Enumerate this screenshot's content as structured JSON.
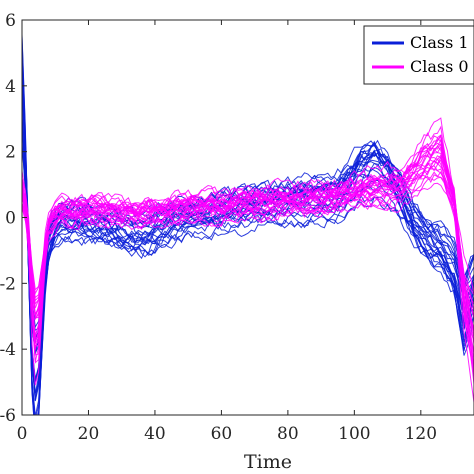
{
  "chart_data": {
    "type": "line",
    "title": "",
    "xlabel": "Time",
    "ylabel": "",
    "xlim": [
      0,
      136
    ],
    "ylim": [
      -6,
      6
    ],
    "x_ticks": [
      0,
      20,
      40,
      60,
      80,
      100,
      120
    ],
    "x_tick_labels": [
      "0",
      "20",
      "40",
      "60",
      "80",
      "100",
      "120"
    ],
    "y_ticks": [
      -6,
      -4,
      -2,
      0,
      2,
      4,
      6
    ],
    "y_tick_labels": [
      "-6",
      "-4",
      "-2",
      "0",
      "2",
      "4",
      "6"
    ],
    "grid": false,
    "legend_position": "top-right",
    "series": [
      {
        "name": "Class 1",
        "color": "#0a1fd8",
        "traces_drawn": 24,
        "spread": 0.55,
        "x": [
          0,
          1,
          2,
          3,
          4,
          5,
          6,
          7,
          8,
          10,
          12,
          15,
          20,
          25,
          30,
          35,
          38,
          42,
          50,
          60,
          70,
          80,
          88,
          94,
          98,
          102,
          106,
          110,
          114,
          118,
          122,
          126,
          130,
          133,
          136
        ],
        "mean": [
          4.0,
          1.8,
          -1.2,
          -4.0,
          -5.0,
          -4.6,
          -3.0,
          -1.5,
          -0.8,
          -0.3,
          -0.1,
          -0.1,
          -0.2,
          -0.3,
          -0.4,
          -0.55,
          -0.5,
          -0.3,
          0.0,
          0.2,
          0.35,
          0.45,
          0.55,
          0.6,
          0.9,
          1.4,
          1.6,
          1.3,
          0.6,
          -0.2,
          -0.7,
          -1.0,
          -1.6,
          -3.0,
          -2.0
        ]
      },
      {
        "name": "Class 0",
        "color": "#ff00ff",
        "traces_drawn": 24,
        "spread": 0.4,
        "x": [
          0,
          1,
          2,
          3,
          4,
          5,
          6,
          7,
          8,
          10,
          12,
          15,
          20,
          25,
          30,
          35,
          38,
          42,
          50,
          60,
          70,
          80,
          88,
          94,
          98,
          102,
          106,
          110,
          114,
          118,
          122,
          126,
          130,
          133,
          136
        ],
        "mean": [
          0.8,
          0.3,
          -0.6,
          -2.5,
          -3.6,
          -3.4,
          -2.2,
          -1.0,
          -0.3,
          0.0,
          0.1,
          0.15,
          0.2,
          0.2,
          0.15,
          0.1,
          0.15,
          0.2,
          0.3,
          0.35,
          0.45,
          0.5,
          0.55,
          0.6,
          0.7,
          0.8,
          0.85,
          0.9,
          1.0,
          1.4,
          1.8,
          2.0,
          0.5,
          -2.5,
          -4.0
        ]
      }
    ]
  }
}
